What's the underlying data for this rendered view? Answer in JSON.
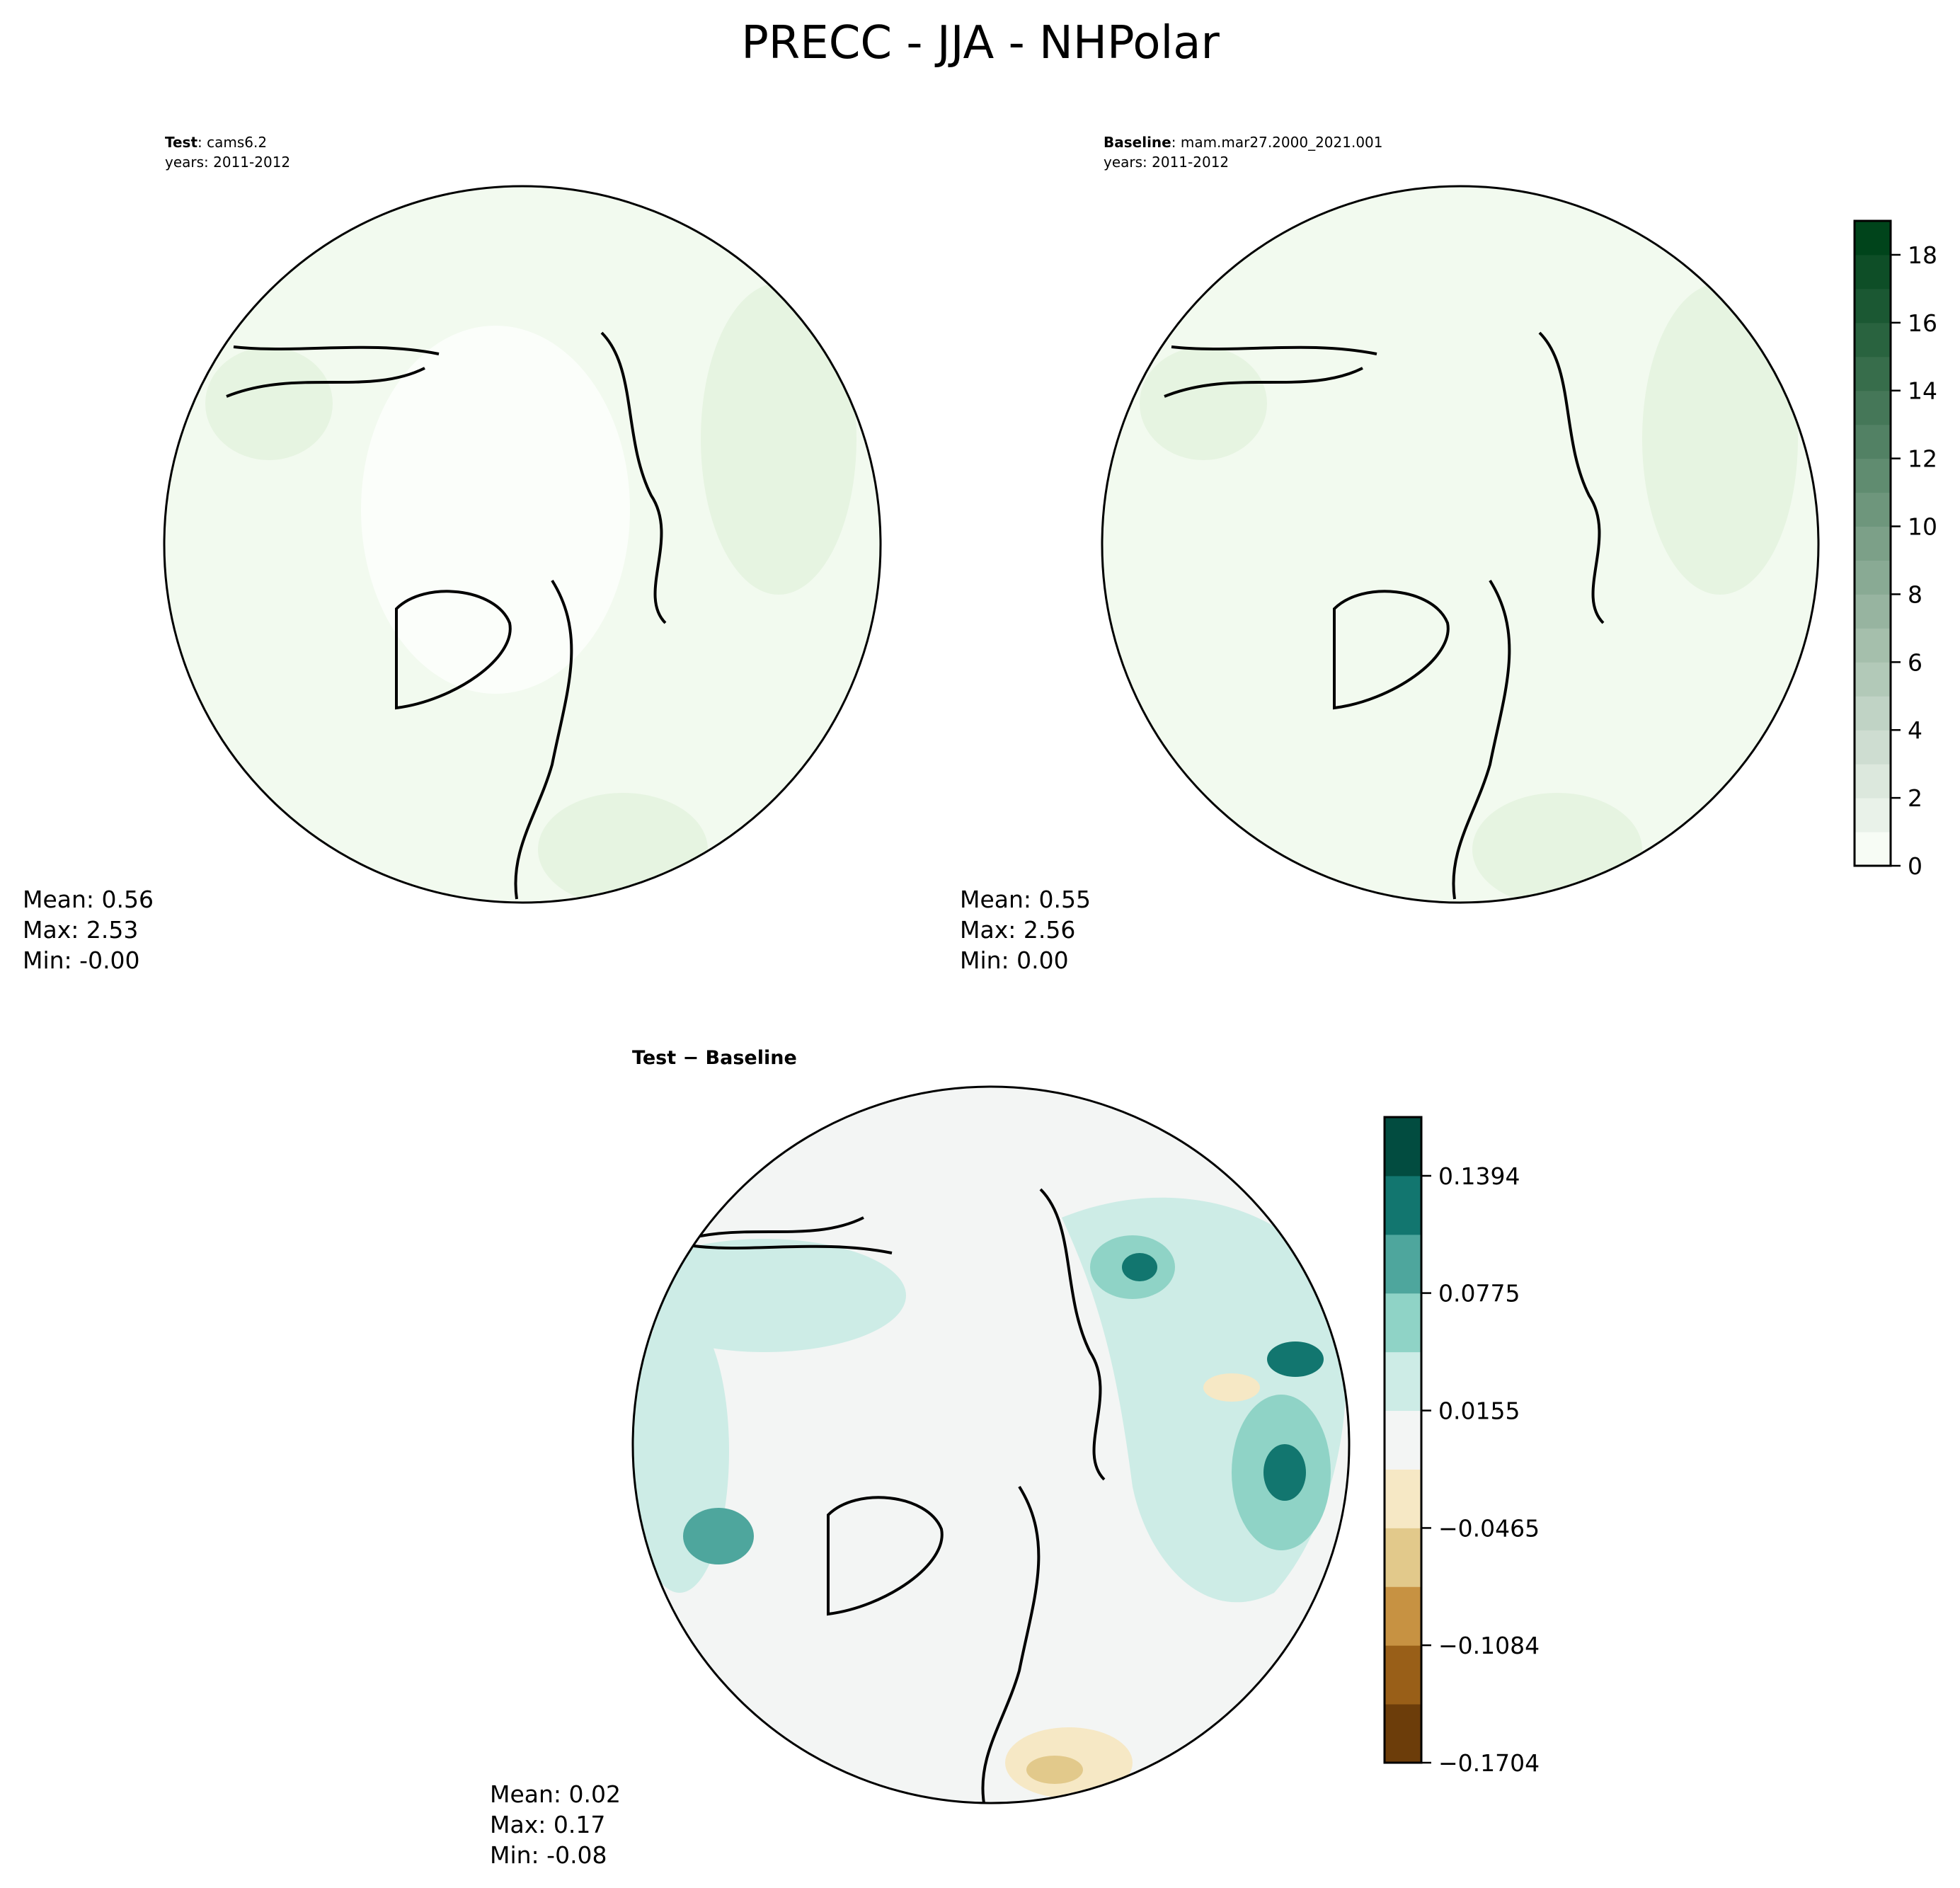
{
  "title": "PRECC - JJA - NHPolar",
  "panels": [
    {
      "label_bold": "Test",
      "label_rest": ": cams6.2",
      "years": "years: 2011-2012",
      "stats": [
        "Mean:  0.56",
        "Max:  2.53",
        "Min: -0.00"
      ]
    },
    {
      "label_bold": "Baseline",
      "label_rest": ": mam.mar27.2000_2021.001",
      "years": "years: 2011-2012",
      "stats": [
        "Mean:  0.55",
        "Max:  2.56",
        "Min:  0.00"
      ]
    },
    {
      "label_bold": "Test − Baseline",
      "stats": [
        "Mean:  0.02",
        "Max:  0.17",
        "Min: -0.08"
      ]
    }
  ],
  "colorbars": [
    {
      "range": [
        0,
        19
      ],
      "ticks": [
        "0",
        "2",
        "4",
        "6",
        "8",
        "10",
        "12",
        "14",
        "16",
        "18"
      ],
      "tick_values": [
        0,
        2,
        4,
        6,
        8,
        10,
        12,
        14,
        16,
        18
      ],
      "levels": 19,
      "colors_from": "#f7fcf5",
      "colors_to": "#00441b"
    },
    {
      "range": [
        -0.1704,
        0.1704
      ],
      "ticks": [
        "0.1394",
        "0.0775",
        "0.0155",
        "−0.0465",
        "−0.1084",
        "−0.1704"
      ],
      "tick_values": [
        0.1394,
        0.0775,
        0.0155,
        -0.0465,
        -0.1084,
        -0.1704
      ],
      "colors": [
        "#6c3d0a",
        "#995f18",
        "#c79242",
        "#e2c98b",
        "#f6e8c5",
        "#f3f5f4",
        "#cdece6",
        "#8fd3c6",
        "#4ea69d",
        "#12766f",
        "#024c40"
      ]
    }
  ]
}
